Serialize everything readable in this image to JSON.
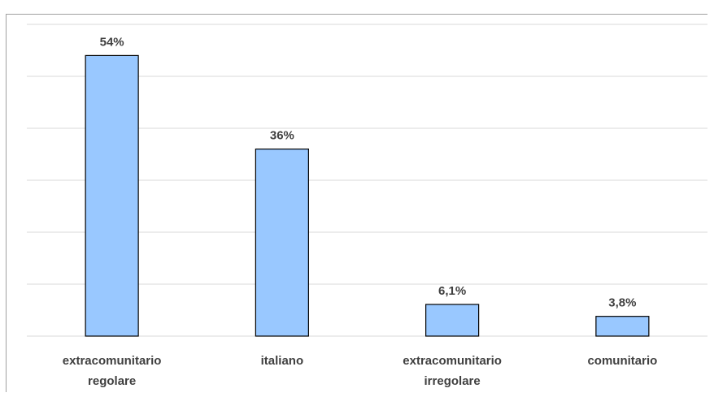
{
  "title_fragment": "",
  "colors": {
    "bar": "#99c8ff",
    "bar_stroke": "#000000",
    "grid": "#d9d9d9",
    "text": "#404040"
  },
  "chart_data": {
    "type": "bar",
    "categories": [
      [
        "extracomunitario",
        "regolare"
      ],
      [
        "italiano"
      ],
      [
        "extracomunitario",
        "irregolare"
      ],
      [
        "comunitario"
      ]
    ],
    "values": [
      54,
      36,
      6.1,
      3.8
    ],
    "data_labels": [
      "54%",
      "36%",
      "6,1%",
      "3,8%"
    ],
    "ylim": [
      0,
      60
    ],
    "y_step": 10,
    "grid": true,
    "title": "",
    "xlabel": "",
    "ylabel": ""
  }
}
